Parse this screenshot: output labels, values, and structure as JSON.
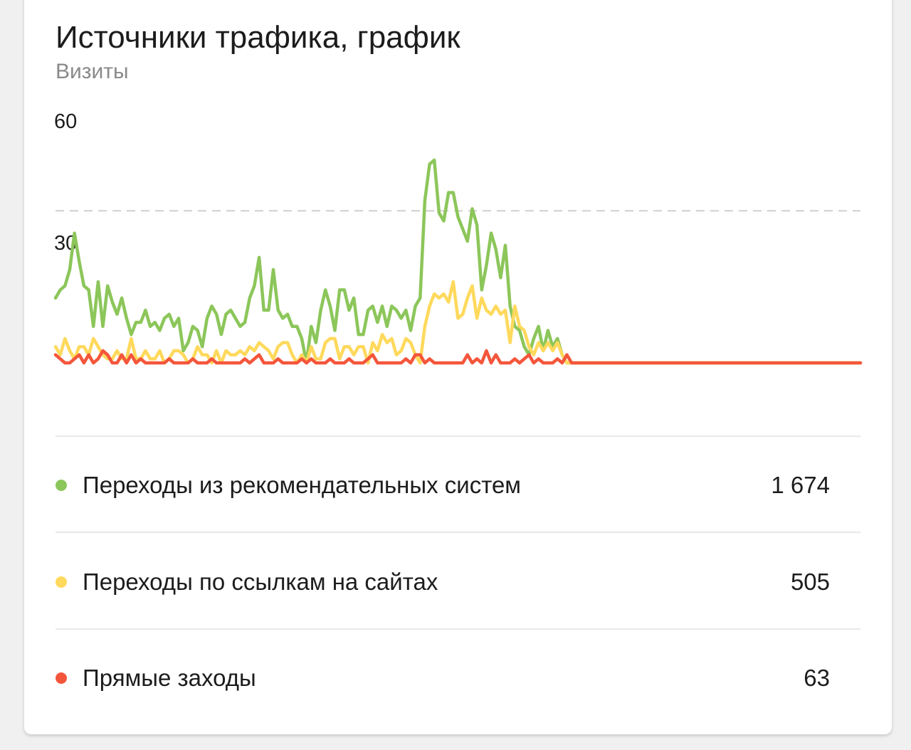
{
  "card": {
    "title": "Источники трафика, график",
    "subtitle": "Визиты"
  },
  "legend": [
    {
      "label": "Переходы из рекомендательных систем",
      "value": "1 674",
      "color": "#8cc65a"
    },
    {
      "label": "Переходы по ссылкам на сайтах",
      "value": "505",
      "color": "#ffd95c"
    },
    {
      "label": "Прямые заходы",
      "value": "63",
      "color": "#f4563b"
    }
  ],
  "chart_data": {
    "type": "line",
    "title": "Источники трафика, график",
    "subtitle": "Визиты",
    "xlabel": "",
    "ylabel": "",
    "ylim": [
      -24,
      65
    ],
    "yticks": [
      30,
      60
    ],
    "ytick_labels": [
      "30",
      "60"
    ],
    "reference_line": 37.5,
    "series": [
      {
        "name": "Переходы из рекомендательных систем",
        "color": "#8cc65a",
        "values": [
          16,
          18,
          19,
          23,
          32,
          25,
          19,
          18,
          9,
          20,
          9,
          19,
          15,
          12,
          16,
          11,
          7,
          10,
          10,
          13,
          9,
          10,
          8,
          11,
          12,
          9,
          11,
          3,
          5,
          9,
          8,
          4,
          11,
          14,
          12,
          7,
          12,
          13,
          11,
          9,
          10,
          16,
          19,
          26,
          13,
          13,
          23,
          13,
          11,
          12,
          9,
          9,
          6,
          0,
          9,
          5,
          13,
          18,
          14,
          8,
          18,
          18,
          13,
          16,
          7,
          7,
          13,
          14,
          10,
          14,
          9,
          14,
          13,
          11,
          13,
          8,
          14,
          16,
          40,
          49,
          50,
          37,
          35,
          42,
          42,
          36,
          33,
          30,
          38,
          34,
          18,
          24,
          32,
          28,
          21,
          29,
          14,
          9,
          8,
          4,
          2,
          6,
          9,
          3,
          8,
          4,
          6,
          2,
          0,
          0,
          0,
          0,
          0,
          0,
          0,
          0,
          0,
          0,
          0,
          0,
          0,
          0,
          0,
          0,
          0,
          0,
          0,
          0,
          0,
          0,
          0,
          0,
          0,
          0,
          0,
          0,
          0,
          0,
          0,
          0,
          0,
          0,
          0,
          0,
          0,
          0,
          0,
          0,
          0,
          0,
          0,
          0,
          0,
          0,
          0,
          0,
          0,
          0,
          0,
          0,
          0,
          0,
          0,
          0,
          0,
          0,
          0,
          0,
          0,
          0,
          0
        ]
      },
      {
        "name": "Переходы по ссылкам на сайтах",
        "color": "#ffd95c",
        "values": [
          4,
          2,
          6,
          3,
          1,
          4,
          4,
          2,
          6,
          4,
          2,
          1,
          1,
          3,
          1,
          1,
          6,
          1,
          1,
          3,
          1,
          1,
          3,
          0,
          1,
          3,
          3,
          2,
          0,
          1,
          4,
          2,
          2,
          0,
          3,
          0,
          3,
          2,
          2,
          3,
          2,
          4,
          3,
          5,
          4,
          3,
          1,
          4,
          5,
          5,
          2,
          0,
          2,
          0,
          4,
          1,
          1,
          5,
          6,
          6,
          1,
          4,
          4,
          2,
          4,
          4,
          0,
          5,
          3,
          7,
          5,
          6,
          2,
          3,
          6,
          5,
          2,
          0,
          9,
          14,
          17,
          16,
          17,
          15,
          20,
          11,
          12,
          16,
          19,
          11,
          16,
          13,
          12,
          14,
          12,
          13,
          5,
          14,
          9,
          8,
          4,
          2,
          5,
          3,
          5,
          3,
          5,
          2,
          0,
          0,
          0,
          0,
          0,
          0,
          0,
          0,
          0,
          0,
          0,
          0,
          0,
          0,
          0,
          0,
          0,
          0,
          0,
          0,
          0,
          0,
          0,
          0,
          0,
          0,
          0,
          0,
          0,
          0,
          0,
          0,
          0,
          0,
          0,
          0,
          0,
          0,
          0,
          0,
          0,
          0,
          0,
          0,
          0,
          0,
          0,
          0,
          0,
          0,
          0,
          0,
          0,
          0,
          0,
          0,
          0,
          0,
          0,
          0,
          0,
          0,
          0
        ]
      },
      {
        "name": "Прямые заходы",
        "color": "#f4563b",
        "values": [
          2,
          1,
          0,
          0,
          1,
          2,
          0,
          2,
          0,
          1,
          3,
          2,
          0,
          0,
          2,
          0,
          2,
          0,
          1,
          0,
          0,
          0,
          0,
          0,
          1,
          0,
          0,
          0,
          0,
          1,
          0,
          0,
          0,
          1,
          0,
          0,
          0,
          0,
          0,
          0,
          1,
          0,
          1,
          2,
          0,
          0,
          0,
          1,
          0,
          0,
          0,
          0,
          1,
          0,
          1,
          0,
          0,
          0,
          1,
          0,
          0,
          0,
          1,
          0,
          0,
          0,
          1,
          2,
          0,
          0,
          0,
          0,
          0,
          0,
          1,
          0,
          2,
          2,
          0,
          1,
          0,
          0,
          0,
          0,
          0,
          0,
          0,
          2,
          0,
          1,
          0,
          3,
          0,
          2,
          0,
          0,
          0,
          1,
          0,
          1,
          2,
          0,
          1,
          0,
          0,
          0,
          1,
          0,
          2,
          0,
          0,
          0,
          0,
          0,
          0,
          0,
          0,
          0,
          0,
          0,
          0,
          0,
          0,
          0,
          0,
          0,
          0,
          0,
          0,
          0,
          0,
          0,
          0,
          0,
          0,
          0,
          0,
          0,
          0,
          0,
          0,
          0,
          0,
          0,
          0,
          0,
          0,
          0,
          0,
          0,
          0,
          0,
          0,
          0,
          0,
          0,
          0,
          0,
          0,
          0,
          0,
          0,
          0,
          0,
          0,
          0,
          0,
          0,
          0,
          0,
          0
        ]
      }
    ]
  }
}
